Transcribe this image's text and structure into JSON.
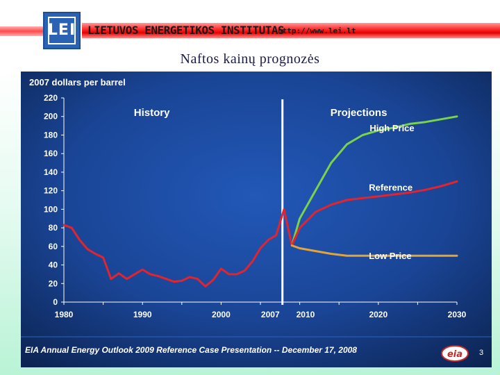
{
  "header": {
    "logo_text": "LEI",
    "org_name": "LIETUVOS ENERGETIKOS INSTITUTAS",
    "org_url": "http://www.lei.lt",
    "slide_title": "Naftos kainų prognozės"
  },
  "footer": {
    "source": "EIA Annual Energy Outlook 2009 Reference Case Presentation -- December 17, 2008",
    "logo_text": "eia",
    "page_number": "3"
  },
  "colors": {
    "panel_dark": "#0c2453",
    "panel_mid": "#1e4ea6",
    "history_line": "#e2242e",
    "high_price": "#7ad34a",
    "reference": "#e2242e",
    "low_price": "#e3a43a",
    "divider": "#ffffff"
  },
  "chart_data": {
    "type": "line",
    "ylabel": "2007 dollars per barrel",
    "xlim": [
      1980,
      2030
    ],
    "ylim": [
      0,
      220
    ],
    "grid": false,
    "x_tick_labels": [
      "1980",
      "1990",
      "2000",
      "2007",
      "2010",
      "2020",
      "2030"
    ],
    "x_ticks": [
      1980,
      1990,
      2000,
      2007,
      2010,
      2020,
      2030
    ],
    "y_ticks": [
      0,
      20,
      40,
      60,
      80,
      100,
      120,
      140,
      160,
      180,
      200,
      220
    ],
    "annotations": {
      "history": "History",
      "projections": "Projections",
      "divider_year": 2007.8
    },
    "series": [
      {
        "name": "History",
        "label": "",
        "x": [
          1980,
          1981,
          1982,
          1983,
          1984,
          1985,
          1986,
          1987,
          1988,
          1989,
          1990,
          1991,
          1992,
          1993,
          1994,
          1995,
          1996,
          1997,
          1998,
          1999,
          2000,
          2001,
          2002,
          2003,
          2004,
          2005,
          2006,
          2007,
          2008,
          2009
        ],
        "y": [
          83,
          80,
          67,
          57,
          52,
          48,
          25,
          31,
          25,
          30,
          35,
          30,
          28,
          25,
          22,
          23,
          27,
          25,
          17,
          24,
          36,
          30,
          30,
          34,
          44,
          58,
          67,
          72,
          100,
          61
        ]
      },
      {
        "name": "High Price",
        "label": "High Price",
        "x": [
          2009,
          2010,
          2012,
          2014,
          2016,
          2018,
          2020,
          2022,
          2024,
          2026,
          2028,
          2030
        ],
        "y": [
          61,
          90,
          120,
          150,
          170,
          180,
          185,
          188,
          192,
          194,
          197,
          200
        ]
      },
      {
        "name": "Reference",
        "label": "Reference",
        "x": [
          2009,
          2010,
          2012,
          2014,
          2016,
          2018,
          2020,
          2022,
          2024,
          2026,
          2028,
          2030
        ],
        "y": [
          61,
          80,
          97,
          105,
          110,
          112,
          114,
          116,
          118,
          121,
          125,
          130
        ]
      },
      {
        "name": "Low Price",
        "label": "Low Price",
        "x": [
          2009,
          2010,
          2012,
          2014,
          2016,
          2018,
          2020,
          2022,
          2024,
          2026,
          2028,
          2030
        ],
        "y": [
          61,
          58,
          55,
          52,
          50,
          50,
          50,
          50,
          50,
          50,
          50,
          50
        ]
      }
    ]
  }
}
